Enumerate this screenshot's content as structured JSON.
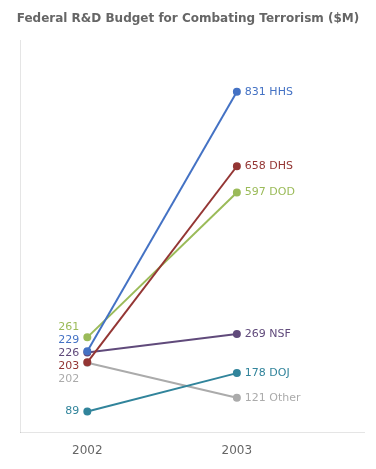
{
  "chart_data": {
    "type": "line",
    "title": "Federal R&D Budget for Combating Terrorism ($M)",
    "x": [
      2002,
      2003
    ],
    "series": [
      {
        "name": "HHS",
        "color": "#4472C4",
        "values": [
          229,
          831
        ],
        "value_labels": [
          "229",
          "831 HHS"
        ]
      },
      {
        "name": "DHS",
        "color": "#943634",
        "values": [
          203,
          658
        ],
        "value_labels": [
          "203",
          "658 DHS"
        ]
      },
      {
        "name": "DOD",
        "color": "#9BBB59",
        "values": [
          261,
          597
        ],
        "value_labels": [
          "261",
          "597 DOD"
        ]
      },
      {
        "name": "NSF",
        "color": "#604A7B",
        "values": [
          226,
          269
        ],
        "value_labels": [
          "226",
          "269 NSF"
        ]
      },
      {
        "name": "DOJ",
        "color": "#31849B",
        "values": [
          89,
          178
        ],
        "value_labels": [
          "89",
          "178 DOJ"
        ]
      },
      {
        "name": "Other",
        "color": "#ABABAB",
        "values": [
          202,
          121
        ],
        "value_labels": [
          "202",
          "121 Other"
        ]
      }
    ],
    "xlim": [
      2001.55,
      2003.85
    ],
    "xticks": [
      2002,
      2003
    ],
    "ylim": [
      40,
      950
    ],
    "grid": false,
    "data_labels": true,
    "tick_labels": "x"
  }
}
